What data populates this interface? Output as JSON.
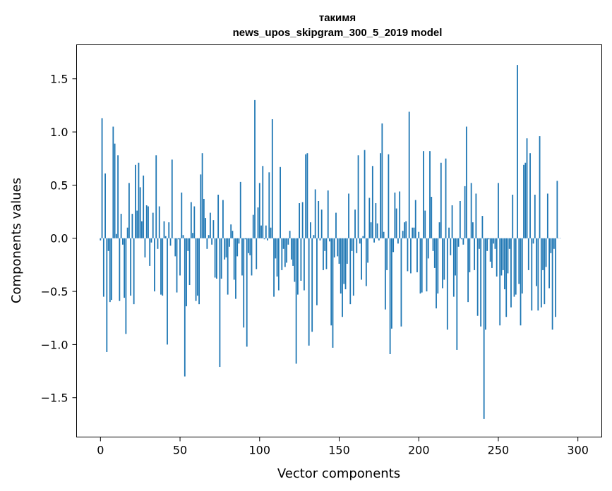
{
  "chart_data": {
    "type": "bar",
    "title_line1": "такимя",
    "title_line2": "news_upos_skipgram_300_5_2019 model",
    "xlabel": "Vector components",
    "ylabel": "Components values",
    "xlim": [
      -15,
      315
    ],
    "ylim": [
      -1.87,
      1.82
    ],
    "xticks": [
      0,
      50,
      100,
      150,
      200,
      250,
      300
    ],
    "xtick_labels": [
      "0",
      "50",
      "100",
      "150",
      "200",
      "250",
      "300"
    ],
    "yticks": [
      -1.5,
      -1.0,
      -0.5,
      0.0,
      0.5,
      1.0,
      1.5
    ],
    "ytick_labels": [
      "−1.5",
      "−1.0",
      "−0.5",
      "0.0",
      "0.5",
      "1.0",
      "1.5"
    ],
    "bar_color": "#1f77b4",
    "grid": false,
    "legend": "none",
    "values": [
      -0.02,
      1.13,
      -0.55,
      0.61,
      -1.07,
      -0.12,
      -0.6,
      -0.58,
      1.05,
      0.89,
      0.04,
      0.78,
      -0.59,
      0.23,
      -0.06,
      -0.56,
      -0.9,
      0.1,
      0.52,
      -0.54,
      0.23,
      -0.62,
      0.69,
      0.26,
      0.71,
      0.48,
      0.16,
      0.59,
      -0.18,
      0.31,
      0.3,
      -0.26,
      -0.04,
      0.24,
      -0.5,
      0.78,
      -0.1,
      0.3,
      -0.53,
      -0.54,
      0.16,
      0.02,
      -1.0,
      0.15,
      -0.07,
      0.74,
      0.0,
      -0.17,
      -0.51,
      -0.01,
      -0.35,
      0.43,
      0.03,
      -1.3,
      -0.64,
      -0.12,
      -0.44,
      0.34,
      0.05,
      0.3,
      -0.59,
      -0.54,
      -0.62,
      0.6,
      0.8,
      0.37,
      0.19,
      -0.1,
      0.03,
      0.24,
      -0.06,
      0.17,
      -0.37,
      -0.38,
      0.41,
      -1.21,
      -0.38,
      0.36,
      -0.2,
      -0.18,
      -0.53,
      -0.08,
      0.13,
      0.07,
      -0.39,
      -0.57,
      -0.17,
      -0.05,
      0.53,
      -0.35,
      -0.84,
      -0.01,
      -1.02,
      -0.14,
      -0.16,
      -0.35,
      0.22,
      1.3,
      -0.29,
      0.29,
      0.52,
      0.12,
      0.68,
      -0.01,
      0.12,
      -0.02,
      0.62,
      0.1,
      1.12,
      -0.55,
      -0.19,
      -0.36,
      -0.49,
      0.67,
      -0.3,
      -0.1,
      -0.27,
      -0.23,
      -0.06,
      0.07,
      -0.2,
      -0.26,
      -0.41,
      -1.18,
      -0.53,
      0.33,
      -0.4,
      0.34,
      -0.49,
      0.79,
      0.8,
      -1.01,
      0.15,
      -0.88,
      0.03,
      0.46,
      -0.63,
      0.35,
      -0.02,
      0.27,
      -0.3,
      -0.12,
      -0.29,
      0.45,
      -0.03,
      -0.82,
      -1.03,
      -0.18,
      0.24,
      -0.17,
      -0.24,
      -0.52,
      -0.74,
      -0.43,
      -0.48,
      -0.24,
      0.42,
      -0.62,
      -0.12,
      -0.54,
      0.27,
      -0.14,
      0.78,
      -0.05,
      -0.39,
      0.02,
      0.83,
      -0.45,
      -0.23,
      0.38,
      0.15,
      0.68,
      -0.04,
      0.33,
      0.14,
      -0.02,
      0.8,
      1.08,
      0.06,
      -0.67,
      -0.3,
      0.79,
      -1.09,
      -0.85,
      -0.13,
      0.43,
      0.28,
      -0.05,
      0.44,
      -0.83,
      0.07,
      0.15,
      0.16,
      -0.31,
      1.19,
      -0.33,
      0.1,
      0.1,
      0.36,
      -0.32,
      0.06,
      -0.52,
      -0.51,
      0.82,
      0.26,
      -0.5,
      -0.19,
      0.82,
      0.39,
      -0.12,
      -0.28,
      -0.66,
      -0.52,
      0.15,
      0.71,
      -0.47,
      -0.39,
      0.75,
      -0.86,
      0.1,
      -0.16,
      0.31,
      -0.55,
      -0.35,
      -1.05,
      -0.08,
      0.35,
      -0.01,
      -0.06,
      0.49,
      1.05,
      -0.6,
      -0.32,
      0.52,
      0.15,
      -0.3,
      0.42,
      -0.73,
      -0.1,
      -0.83,
      0.21,
      -1.7,
      -0.86,
      -0.12,
      -0.01,
      -0.22,
      -0.28,
      -0.05,
      -0.1,
      -0.36,
      0.52,
      -0.82,
      -0.35,
      -0.3,
      -0.48,
      -0.74,
      -0.33,
      -0.1,
      -0.65,
      0.41,
      -0.55,
      -0.53,
      1.63,
      -0.43,
      -0.82,
      -0.52,
      0.69,
      0.71,
      0.94,
      -0.3,
      0.8,
      -0.68,
      -0.05,
      0.41,
      -0.45,
      -0.68,
      0.96,
      -0.65,
      -0.3,
      -0.62,
      -0.27,
      0.42,
      -0.47,
      -0.14,
      -0.86,
      -0.1,
      -0.74,
      0.54,
      0.0,
      0.0
    ]
  }
}
